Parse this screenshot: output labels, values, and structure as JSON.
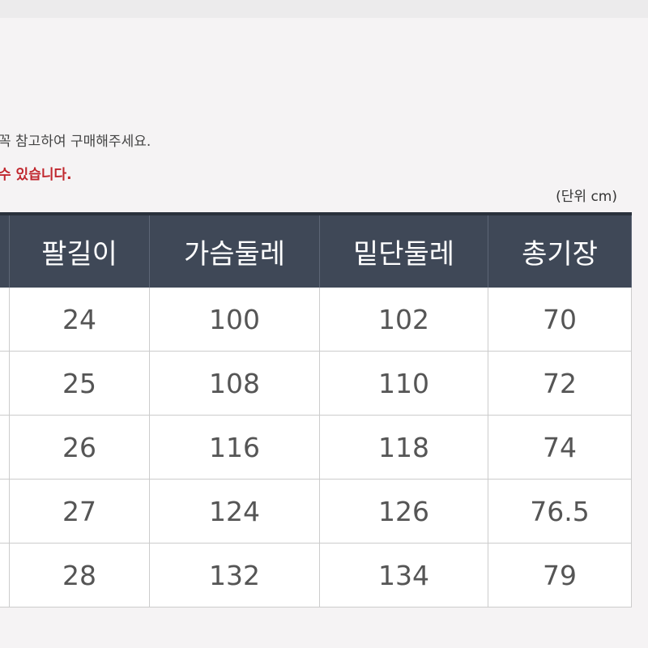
{
  "notes": [
    "꼭 참고하여 구매해주세요.",
    "수 있습니다."
  ],
  "unit": "(단위 cm)",
  "table": {
    "headers": [
      "팔길이",
      "가슴둘레",
      "밑단둘레",
      "총기장"
    ],
    "rows": [
      [
        24,
        100,
        102,
        70
      ],
      [
        25,
        108,
        110,
        72
      ],
      [
        26,
        116,
        118,
        74
      ],
      [
        27,
        124,
        126,
        76.5
      ],
      [
        28,
        132,
        134,
        79
      ]
    ]
  }
}
